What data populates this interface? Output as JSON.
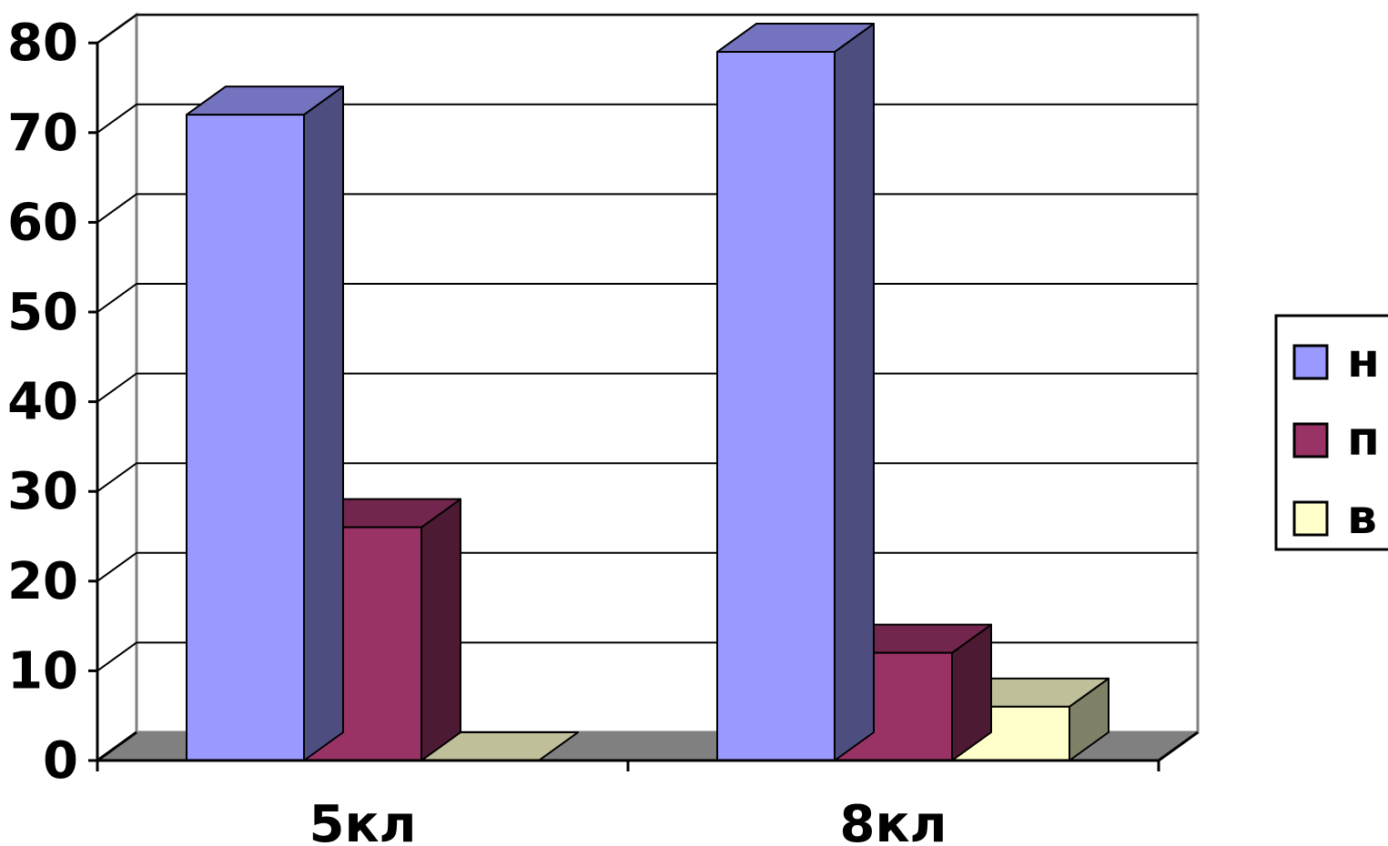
{
  "chart_data": {
    "type": "bar",
    "style": "3d-clustered-column",
    "categories": [
      "5кл",
      "8кл"
    ],
    "series": [
      {
        "name": "н",
        "values": [
          72,
          79
        ],
        "color": "#9999ff",
        "side_color": "#4d4d80",
        "top_color": "#7373bf"
      },
      {
        "name": "п",
        "values": [
          26,
          12
        ],
        "color": "#993366",
        "side_color": "#4d1a33",
        "top_color": "#73264d"
      },
      {
        "name": "в",
        "values": [
          0,
          6
        ],
        "color": "#ffffcc",
        "side_color": "#808066",
        "top_color": "#bfbf99"
      }
    ],
    "y_ticks": [
      "0",
      "10",
      "20",
      "30",
      "40",
      "50",
      "60",
      "70",
      "80"
    ],
    "ylim": [
      0,
      80
    ],
    "grid": true,
    "legend_position": "right"
  }
}
